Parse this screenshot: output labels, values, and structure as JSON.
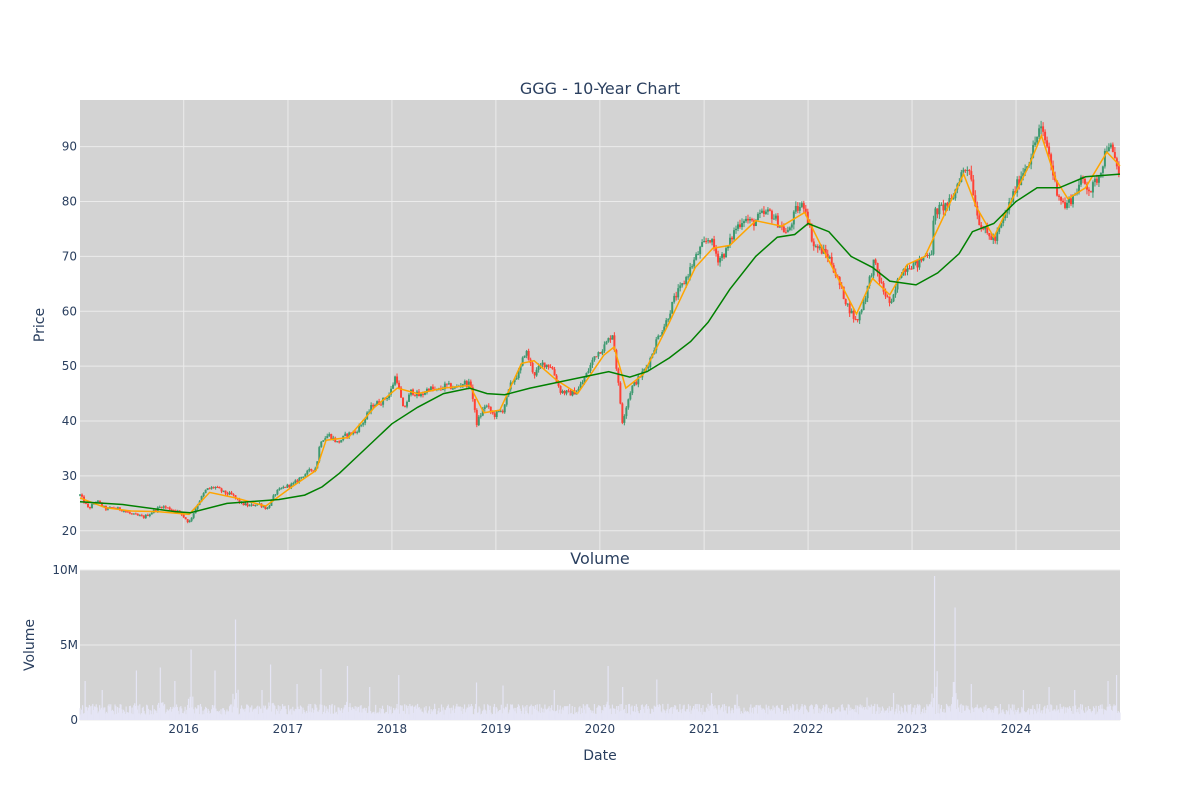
{
  "chart_data": [
    {
      "type": "candlestick",
      "title": "GGG - 10-Year Chart",
      "ylabel": "Price",
      "xlabel": "",
      "x_range": [
        "2015-01-02",
        "2024-12-31"
      ],
      "ylim": [
        16.5,
        98.5
      ],
      "y_ticks": [
        20,
        30,
        40,
        50,
        60,
        70,
        80,
        90
      ],
      "x_ticks": [
        "2016",
        "2017",
        "2018",
        "2019",
        "2020",
        "2021",
        "2022",
        "2023",
        "2024"
      ],
      "grid": true,
      "background": "#d3d3d3",
      "colors": {
        "up": "#3d9970",
        "down": "#ff4136",
        "ma_short": "#ffa500",
        "ma_long": "#008000"
      },
      "price_path": [
        [
          "2015-01-02",
          26.5
        ],
        [
          "2015-02-01",
          24.0
        ],
        [
          "2015-03-01",
          25.5
        ],
        [
          "2015-04-01",
          24.0
        ],
        [
          "2015-05-01",
          24.2
        ],
        [
          "2015-06-01",
          23.8
        ],
        [
          "2015-07-01",
          23.0
        ],
        [
          "2015-08-15",
          22.5
        ],
        [
          "2015-09-15",
          23.5
        ],
        [
          "2015-10-15",
          24.5
        ],
        [
          "2015-11-15",
          24.0
        ],
        [
          "2015-12-15",
          23.5
        ],
        [
          "2016-01-20",
          21.5
        ],
        [
          "2016-02-20",
          25.0
        ],
        [
          "2016-03-20",
          27.5
        ],
        [
          "2016-04-20",
          28.0
        ],
        [
          "2016-05-20",
          27.0
        ],
        [
          "2016-06-20",
          26.5
        ],
        [
          "2016-07-20",
          25.0
        ],
        [
          "2016-08-20",
          24.5
        ],
        [
          "2016-09-20",
          25.0
        ],
        [
          "2016-10-20",
          24.0
        ],
        [
          "2016-11-20",
          27.0
        ],
        [
          "2016-12-20",
          28.0
        ],
        [
          "2017-01-20",
          28.5
        ],
        [
          "2017-02-20",
          30.0
        ],
        [
          "2017-03-20",
          31.0
        ],
        [
          "2017-04-10",
          31.5
        ],
        [
          "2017-04-25",
          36.5
        ],
        [
          "2017-05-25",
          37.5
        ],
        [
          "2017-06-25",
          36.0
        ],
        [
          "2017-07-25",
          37.5
        ],
        [
          "2017-08-25",
          38.0
        ],
        [
          "2017-09-25",
          40.0
        ],
        [
          "2017-10-25",
          43.0
        ],
        [
          "2017-11-25",
          43.5
        ],
        [
          "2017-12-25",
          45.0
        ],
        [
          "2018-01-15",
          48.5
        ],
        [
          "2018-02-10",
          42.0
        ],
        [
          "2018-03-10",
          45.5
        ],
        [
          "2018-04-10",
          44.5
        ],
        [
          "2018-05-10",
          46.0
        ],
        [
          "2018-06-10",
          45.5
        ],
        [
          "2018-07-10",
          46.5
        ],
        [
          "2018-08-10",
          46.0
        ],
        [
          "2018-09-10",
          47.0
        ],
        [
          "2018-10-05",
          46.5
        ],
        [
          "2018-10-25",
          39.5
        ],
        [
          "2018-11-25",
          43.0
        ],
        [
          "2018-12-25",
          41.0
        ],
        [
          "2019-01-25",
          42.0
        ],
        [
          "2019-02-25",
          47.0
        ],
        [
          "2019-03-25",
          49.0
        ],
        [
          "2019-04-15",
          53.0
        ],
        [
          "2019-05-15",
          48.5
        ],
        [
          "2019-06-15",
          50.5
        ],
        [
          "2019-07-15",
          50.0
        ],
        [
          "2019-08-15",
          45.5
        ],
        [
          "2019-09-15",
          45.0
        ],
        [
          "2019-10-15",
          45.5
        ],
        [
          "2019-11-15",
          48.5
        ],
        [
          "2019-12-15",
          52.0
        ],
        [
          "2020-01-15",
          53.5
        ],
        [
          "2020-02-15",
          56.0
        ],
        [
          "2020-03-20",
          40.0
        ],
        [
          "2020-04-20",
          46.0
        ],
        [
          "2020-05-20",
          48.0
        ],
        [
          "2020-06-20",
          50.5
        ],
        [
          "2020-07-20",
          55.0
        ],
        [
          "2020-08-20",
          58.0
        ],
        [
          "2020-09-20",
          62.5
        ],
        [
          "2020-10-20",
          65.0
        ],
        [
          "2020-11-20",
          68.5
        ],
        [
          "2020-12-20",
          71.5
        ],
        [
          "2021-01-20",
          73.5
        ],
        [
          "2021-02-20",
          69.5
        ],
        [
          "2021-03-20",
          71.0
        ],
        [
          "2021-04-20",
          75.0
        ],
        [
          "2021-05-20",
          77.0
        ],
        [
          "2021-06-20",
          76.0
        ],
        [
          "2021-07-20",
          77.5
        ],
        [
          "2021-08-20",
          78.0
        ],
        [
          "2021-09-20",
          76.0
        ],
        [
          "2021-10-20",
          74.0
        ],
        [
          "2021-11-20",
          78.5
        ],
        [
          "2021-12-20",
          79.5
        ],
        [
          "2022-01-20",
          72.0
        ],
        [
          "2022-02-20",
          71.0
        ],
        [
          "2022-03-20",
          69.5
        ],
        [
          "2022-04-20",
          65.0
        ],
        [
          "2022-05-20",
          61.0
        ],
        [
          "2022-06-20",
          58.0
        ],
        [
          "2022-07-20",
          62.5
        ],
        [
          "2022-08-20",
          69.0
        ],
        [
          "2022-09-20",
          64.0
        ],
        [
          "2022-10-20",
          61.0
        ],
        [
          "2022-11-20",
          67.0
        ],
        [
          "2022-12-20",
          68.5
        ],
        [
          "2023-01-20",
          68.5
        ],
        [
          "2023-02-20",
          70.5
        ],
        [
          "2023-03-10",
          71.0
        ],
        [
          "2023-03-20",
          78.0
        ],
        [
          "2023-04-20",
          79.0
        ],
        [
          "2023-05-20",
          80.0
        ],
        [
          "2023-06-20",
          85.0
        ],
        [
          "2023-07-20",
          86.5
        ],
        [
          "2023-08-20",
          77.0
        ],
        [
          "2023-09-20",
          74.0
        ],
        [
          "2023-10-20",
          73.0
        ],
        [
          "2023-11-20",
          77.0
        ],
        [
          "2023-12-20",
          81.0
        ],
        [
          "2024-01-20",
          85.0
        ],
        [
          "2024-02-20",
          88.0
        ],
        [
          "2024-03-25",
          93.5
        ],
        [
          "2024-04-20",
          90.0
        ],
        [
          "2024-05-20",
          82.5
        ],
        [
          "2024-06-20",
          79.0
        ],
        [
          "2024-07-20",
          81.0
        ],
        [
          "2024-08-20",
          84.0
        ],
        [
          "2024-09-20",
          82.0
        ],
        [
          "2024-10-20",
          85.0
        ],
        [
          "2024-11-20",
          91.0
        ],
        [
          "2024-12-31",
          84.5
        ]
      ],
      "ma_short": [
        [
          "2015-01-02",
          26.0
        ],
        [
          "2015-04-01",
          24.2
        ],
        [
          "2015-07-01",
          23.6
        ],
        [
          "2015-10-01",
          23.5
        ],
        [
          "2016-01-20",
          23.0
        ],
        [
          "2016-04-01",
          27.0
        ],
        [
          "2016-07-01",
          26.0
        ],
        [
          "2016-10-15",
          24.5
        ],
        [
          "2017-01-15",
          28.0
        ],
        [
          "2017-04-10",
          31.0
        ],
        [
          "2017-05-15",
          36.5
        ],
        [
          "2017-08-01",
          37.0
        ],
        [
          "2017-11-01",
          42.5
        ],
        [
          "2018-01-20",
          46.0
        ],
        [
          "2018-04-01",
          45.0
        ],
        [
          "2018-07-01",
          46.0
        ],
        [
          "2018-10-01",
          46.5
        ],
        [
          "2018-11-20",
          41.5
        ],
        [
          "2019-01-15",
          42.0
        ],
        [
          "2019-04-01",
          50.5
        ],
        [
          "2019-05-15",
          51.0
        ],
        [
          "2019-08-01",
          47.5
        ],
        [
          "2019-10-15",
          45.0
        ],
        [
          "2020-01-15",
          52.0
        ],
        [
          "2020-02-20",
          53.5
        ],
        [
          "2020-04-01",
          46.0
        ],
        [
          "2020-06-01",
          48.5
        ],
        [
          "2020-09-01",
          58.0
        ],
        [
          "2020-12-01",
          68.0
        ],
        [
          "2021-02-01",
          71.5
        ],
        [
          "2021-04-01",
          72.0
        ],
        [
          "2021-07-01",
          76.5
        ],
        [
          "2021-10-01",
          75.5
        ],
        [
          "2021-12-20",
          78.0
        ],
        [
          "2022-02-15",
          72.0
        ],
        [
          "2022-05-01",
          64.5
        ],
        [
          "2022-06-20",
          59.5
        ],
        [
          "2022-08-15",
          66.0
        ],
        [
          "2022-10-15",
          63.0
        ],
        [
          "2022-12-15",
          68.5
        ],
        [
          "2023-02-15",
          70.0
        ],
        [
          "2023-04-01",
          75.0
        ],
        [
          "2023-07-01",
          85.0
        ],
        [
          "2023-08-15",
          79.0
        ],
        [
          "2023-10-15",
          73.5
        ],
        [
          "2023-12-15",
          80.0
        ],
        [
          "2024-02-15",
          86.5
        ],
        [
          "2024-03-30",
          92.0
        ],
        [
          "2024-05-20",
          84.0
        ],
        [
          "2024-07-01",
          80.5
        ],
        [
          "2024-09-01",
          82.5
        ],
        [
          "2024-11-15",
          89.0
        ],
        [
          "2024-12-31",
          86.5
        ]
      ],
      "ma_long": [
        [
          "2015-01-02",
          25.3
        ],
        [
          "2015-06-01",
          24.8
        ],
        [
          "2015-12-01",
          23.5
        ],
        [
          "2016-01-25",
          23.3
        ],
        [
          "2016-06-01",
          25.0
        ],
        [
          "2016-12-01",
          25.7
        ],
        [
          "2017-03-01",
          26.5
        ],
        [
          "2017-05-01",
          28.0
        ],
        [
          "2017-07-01",
          30.5
        ],
        [
          "2017-10-01",
          35.0
        ],
        [
          "2018-01-01",
          39.5
        ],
        [
          "2018-04-01",
          42.5
        ],
        [
          "2018-07-01",
          45.0
        ],
        [
          "2018-10-01",
          46.0
        ],
        [
          "2018-12-01",
          45.0
        ],
        [
          "2019-02-01",
          44.8
        ],
        [
          "2019-05-01",
          46.0
        ],
        [
          "2019-08-01",
          47.0
        ],
        [
          "2019-11-01",
          48.0
        ],
        [
          "2020-02-01",
          49.0
        ],
        [
          "2020-04-15",
          48.0
        ],
        [
          "2020-06-15",
          49.0
        ],
        [
          "2020-09-01",
          51.5
        ],
        [
          "2020-11-15",
          54.5
        ],
        [
          "2021-01-15",
          58.0
        ],
        [
          "2021-04-01",
          64.0
        ],
        [
          "2021-07-01",
          70.0
        ],
        [
          "2021-09-15",
          73.5
        ],
        [
          "2021-11-15",
          74.0
        ],
        [
          "2022-01-01",
          76.0
        ],
        [
          "2022-03-15",
          74.5
        ],
        [
          "2022-06-01",
          70.0
        ],
        [
          "2022-08-15",
          68.0
        ],
        [
          "2022-10-15",
          65.5
        ],
        [
          "2023-01-15",
          64.8
        ],
        [
          "2023-04-01",
          67.0
        ],
        [
          "2023-06-15",
          70.5
        ],
        [
          "2023-08-01",
          74.5
        ],
        [
          "2023-10-15",
          76.0
        ],
        [
          "2024-01-01",
          80.0
        ],
        [
          "2024-03-15",
          82.5
        ],
        [
          "2024-06-01",
          82.5
        ],
        [
          "2024-09-01",
          84.5
        ],
        [
          "2024-12-31",
          85.0
        ]
      ]
    },
    {
      "type": "bar",
      "title": "Volume",
      "xlabel": "Date",
      "ylabel": "Volume",
      "ylim": [
        0,
        10000000
      ],
      "y_ticks": [
        0,
        5000000,
        10000000
      ],
      "y_tick_labels": [
        "0",
        "5M",
        "10M"
      ],
      "x_ticks": [
        "2016",
        "2017",
        "2018",
        "2019",
        "2020",
        "2021",
        "2022",
        "2023",
        "2024"
      ],
      "grid": true,
      "background": "#d3d3d3",
      "bar_color": "#e5e5f5",
      "baseline_level": 800000,
      "volume_spikes": [
        [
          "2015-01-20",
          2600000
        ],
        [
          "2015-03-20",
          2000000
        ],
        [
          "2015-07-20",
          3300000
        ],
        [
          "2015-10-10",
          3500000
        ],
        [
          "2015-12-01",
          2600000
        ],
        [
          "2016-01-28",
          4700000
        ],
        [
          "2016-04-20",
          3300000
        ],
        [
          "2016-07-01",
          6700000
        ],
        [
          "2016-10-01",
          2000000
        ],
        [
          "2016-11-01",
          3700000
        ],
        [
          "2017-02-01",
          2400000
        ],
        [
          "2017-04-28",
          3400000
        ],
        [
          "2017-07-28",
          3600000
        ],
        [
          "2017-10-15",
          2200000
        ],
        [
          "2018-01-25",
          3000000
        ],
        [
          "2018-10-25",
          2500000
        ],
        [
          "2019-01-25",
          2300000
        ],
        [
          "2019-07-25",
          2000000
        ],
        [
          "2020-01-30",
          3600000
        ],
        [
          "2020-03-20",
          2200000
        ],
        [
          "2020-07-20",
          2700000
        ],
        [
          "2021-01-28",
          1800000
        ],
        [
          "2021-04-28",
          1700000
        ],
        [
          "2022-07-28",
          1500000
        ],
        [
          "2022-10-28",
          1800000
        ],
        [
          "2023-03-20",
          9600000
        ],
        [
          "2023-06-01",
          7500000
        ],
        [
          "2023-07-28",
          2400000
        ],
        [
          "2024-01-26",
          2000000
        ],
        [
          "2024-04-26",
          2200000
        ],
        [
          "2024-07-26",
          2000000
        ],
        [
          "2024-11-20",
          2600000
        ],
        [
          "2024-12-20",
          3000000
        ]
      ]
    }
  ]
}
